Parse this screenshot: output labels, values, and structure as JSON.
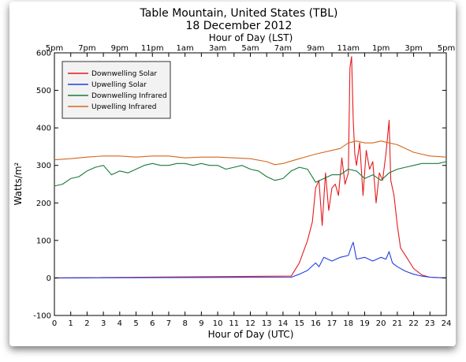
{
  "chart_data": {
    "type": "line",
    "title": "Table Mountain, United States (TBL)",
    "subtitle": "18 December 2012",
    "xlabel": "Hour of Day (UTC)",
    "ylabel": "Watts/m²",
    "top_xlabel": "Hour of Day (LST)",
    "xlim": [
      0,
      24
    ],
    "ylim": [
      -100,
      600
    ],
    "xticks": [
      0,
      1,
      2,
      3,
      4,
      5,
      6,
      7,
      8,
      9,
      10,
      11,
      12,
      13,
      14,
      15,
      16,
      17,
      18,
      19,
      20,
      21,
      22,
      23,
      24
    ],
    "yticks": [
      -100,
      0,
      100,
      200,
      300,
      400,
      500,
      600
    ],
    "top_ticks": [
      {
        "x": 0,
        "label": "5pm"
      },
      {
        "x": 2,
        "label": "7pm"
      },
      {
        "x": 4,
        "label": "9pm"
      },
      {
        "x": 6,
        "label": "11pm"
      },
      {
        "x": 8,
        "label": "1am"
      },
      {
        "x": 10,
        "label": "3am"
      },
      {
        "x": 12,
        "label": "5am"
      },
      {
        "x": 14,
        "label": "7am"
      },
      {
        "x": 16,
        "label": "9am"
      },
      {
        "x": 18,
        "label": "11am"
      },
      {
        "x": 20,
        "label": "1pm"
      },
      {
        "x": 22,
        "label": "3pm"
      },
      {
        "x": 24,
        "label": "5pm"
      }
    ],
    "grid": false,
    "legend_position": "top-left",
    "series": [
      {
        "name": "Downwelling Solar",
        "color": "#e41a1c",
        "x": [
          0,
          14.5,
          15.0,
          15.5,
          15.8,
          16.0,
          16.2,
          16.4,
          16.6,
          16.8,
          17.0,
          17.2,
          17.4,
          17.6,
          17.8,
          18.0,
          18.1,
          18.2,
          18.3,
          18.4,
          18.5,
          18.7,
          18.9,
          19.1,
          19.3,
          19.5,
          19.7,
          19.9,
          20.1,
          20.3,
          20.5,
          20.6,
          20.8,
          21.0,
          21.2,
          21.5,
          22.0,
          22.5,
          23.0,
          24.0
        ],
        "y": [
          0,
          5,
          40,
          100,
          150,
          240,
          260,
          140,
          280,
          180,
          240,
          250,
          220,
          320,
          250,
          280,
          560,
          590,
          420,
          330,
          300,
          360,
          220,
          340,
          290,
          310,
          200,
          280,
          260,
          330,
          420,
          260,
          220,
          140,
          80,
          60,
          25,
          8,
          2,
          0
        ]
      },
      {
        "name": "Upwelling Solar",
        "color": "#1f3fe0",
        "x": [
          0,
          14.5,
          15.0,
          15.5,
          16.0,
          16.2,
          16.5,
          17.0,
          17.5,
          18.0,
          18.2,
          18.3,
          18.5,
          19.0,
          19.5,
          20.0,
          20.3,
          20.5,
          20.7,
          21.0,
          21.5,
          22.0,
          22.5,
          23.0,
          24.0
        ],
        "y": [
          0,
          2,
          10,
          20,
          40,
          30,
          55,
          45,
          55,
          60,
          85,
          95,
          50,
          55,
          45,
          55,
          50,
          70,
          40,
          30,
          18,
          10,
          5,
          2,
          0
        ]
      },
      {
        "name": "Downwelling Infrared",
        "color": "#1a7a3a",
        "x": [
          0,
          0.5,
          1,
          1.5,
          2,
          2.5,
          3,
          3.5,
          4,
          4.5,
          5,
          5.5,
          6,
          6.5,
          7,
          7.5,
          8,
          8.5,
          9,
          9.5,
          10,
          10.5,
          11,
          11.5,
          12,
          12.5,
          13,
          13.5,
          14,
          14.5,
          15,
          15.5,
          16,
          16.5,
          17,
          17.5,
          18,
          18.5,
          19,
          19.5,
          20,
          20.5,
          21,
          21.5,
          22,
          22.5,
          23,
          23.5,
          24
        ],
        "y": [
          245,
          250,
          265,
          270,
          285,
          295,
          300,
          275,
          285,
          280,
          290,
          300,
          305,
          300,
          300,
          305,
          305,
          300,
          305,
          300,
          300,
          290,
          295,
          300,
          290,
          285,
          270,
          260,
          265,
          285,
          295,
          290,
          255,
          265,
          275,
          275,
          290,
          285,
          265,
          275,
          260,
          280,
          290,
          295,
          300,
          305,
          305,
          305,
          310
        ]
      },
      {
        "name": "Upwelling Infrared",
        "color": "#d2691e",
        "x": [
          0,
          1,
          2,
          3,
          4,
          5,
          6,
          7,
          8,
          9,
          10,
          11,
          12,
          13,
          13.5,
          14,
          15,
          16,
          17,
          17.5,
          18,
          18.5,
          19,
          19.5,
          20,
          20.5,
          21,
          21.5,
          22,
          23,
          24
        ],
        "y": [
          315,
          318,
          322,
          325,
          325,
          322,
          325,
          325,
          320,
          322,
          322,
          320,
          318,
          310,
          302,
          305,
          318,
          330,
          340,
          345,
          360,
          365,
          360,
          360,
          365,
          360,
          355,
          345,
          335,
          325,
          322
        ]
      }
    ]
  }
}
